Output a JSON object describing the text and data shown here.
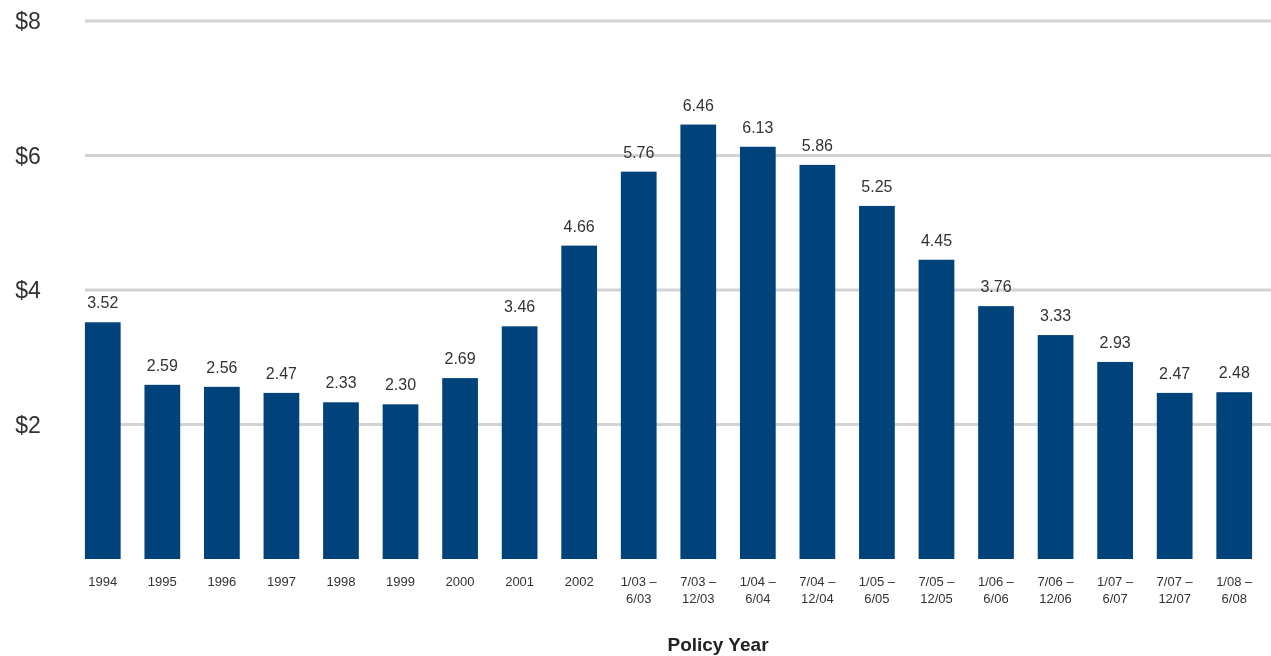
{
  "chart_data": {
    "type": "bar",
    "xlabel": "Policy Year",
    "categories": [
      "1994",
      "1995",
      "1996",
      "1997",
      "1998",
      "1999",
      "2000",
      "2001",
      "2002",
      "1/03 – 6/03",
      "7/03 – 12/03",
      "1/04 – 6/04",
      "7/04 – 12/04",
      "1/05 – 6/05",
      "7/05 – 12/05",
      "1/06 – 6/06",
      "7/06 – 12/06",
      "1/07 – 6/07",
      "7/07 – 12/07",
      "1/08 – 6/08"
    ],
    "values": [
      3.52,
      2.59,
      2.56,
      2.47,
      2.33,
      2.3,
      2.69,
      3.46,
      4.66,
      5.76,
      6.46,
      6.13,
      5.86,
      5.25,
      4.45,
      3.76,
      3.33,
      2.93,
      2.47,
      2.48
    ],
    "value_labels": [
      "3.52",
      "2.59",
      "2.56",
      "2.47",
      "2.33",
      "2.30",
      "2.69",
      "3.46",
      "4.66",
      "5.76",
      "6.46",
      "6.13",
      "5.86",
      "5.25",
      "4.45",
      "3.76",
      "3.33",
      "2.93",
      "2.47",
      "2.48"
    ],
    "color": "#00427a",
    "ylim": [
      0,
      8
    ],
    "yticks": [
      {
        "value": 2,
        "label": "$2"
      },
      {
        "value": 4,
        "label": "$4"
      },
      {
        "value": 6,
        "label": "$6"
      },
      {
        "value": 8,
        "label": "$8"
      }
    ],
    "grid": "y"
  }
}
